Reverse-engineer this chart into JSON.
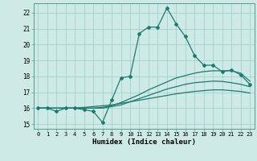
{
  "xlabel": "Humidex (Indice chaleur)",
  "xlim": [
    -0.5,
    23.5
  ],
  "ylim": [
    14.7,
    22.6
  ],
  "xticks": [
    0,
    1,
    2,
    3,
    4,
    5,
    6,
    7,
    8,
    9,
    10,
    11,
    12,
    13,
    14,
    15,
    16,
    17,
    18,
    19,
    20,
    21,
    22,
    23
  ],
  "yticks": [
    15,
    16,
    17,
    18,
    19,
    20,
    21,
    22
  ],
  "background_color": "#ceeae6",
  "grid_color": "#9dccc7",
  "line_color": "#1e7a6d",
  "line1_x": [
    0,
    1,
    2,
    3,
    4,
    5,
    6,
    7,
    8,
    9,
    10,
    11,
    12,
    13,
    14,
    15,
    16,
    17,
    18,
    19,
    20,
    21,
    22,
    23
  ],
  "line1_y": [
    16.0,
    16.0,
    15.8,
    16.0,
    16.0,
    15.9,
    15.8,
    15.1,
    16.5,
    17.9,
    18.0,
    20.7,
    21.1,
    21.1,
    22.3,
    21.3,
    20.5,
    19.3,
    18.7,
    18.7,
    18.3,
    18.4,
    18.1,
    17.5
  ],
  "line2_x": [
    0,
    1,
    2,
    3,
    4,
    5,
    6,
    7,
    8,
    9,
    10,
    11,
    12,
    13,
    14,
    15,
    16,
    17,
    18,
    19,
    20,
    21,
    22,
    23
  ],
  "line2_y": [
    16.0,
    16.0,
    16.0,
    16.0,
    16.0,
    16.0,
    16.0,
    16.05,
    16.15,
    16.35,
    16.6,
    16.85,
    17.15,
    17.4,
    17.65,
    17.9,
    18.05,
    18.2,
    18.3,
    18.35,
    18.35,
    18.35,
    18.2,
    17.7
  ],
  "line3_x": [
    0,
    1,
    2,
    3,
    4,
    5,
    6,
    7,
    8,
    9,
    10,
    11,
    12,
    13,
    14,
    15,
    16,
    17,
    18,
    19,
    20,
    21,
    22,
    23
  ],
  "line3_y": [
    16.0,
    16.0,
    16.0,
    16.0,
    16.0,
    16.0,
    16.0,
    16.0,
    16.1,
    16.2,
    16.4,
    16.6,
    16.8,
    17.0,
    17.2,
    17.35,
    17.5,
    17.6,
    17.65,
    17.7,
    17.68,
    17.6,
    17.5,
    17.35
  ],
  "line4_x": [
    0,
    1,
    2,
    3,
    4,
    5,
    6,
    7,
    8,
    9,
    10,
    11,
    12,
    13,
    14,
    15,
    16,
    17,
    18,
    19,
    20,
    21,
    22,
    23
  ],
  "line4_y": [
    16.0,
    16.0,
    16.0,
    16.0,
    16.0,
    16.05,
    16.1,
    16.15,
    16.2,
    16.3,
    16.4,
    16.5,
    16.6,
    16.7,
    16.8,
    16.9,
    16.98,
    17.05,
    17.1,
    17.15,
    17.15,
    17.1,
    17.05,
    16.95
  ]
}
